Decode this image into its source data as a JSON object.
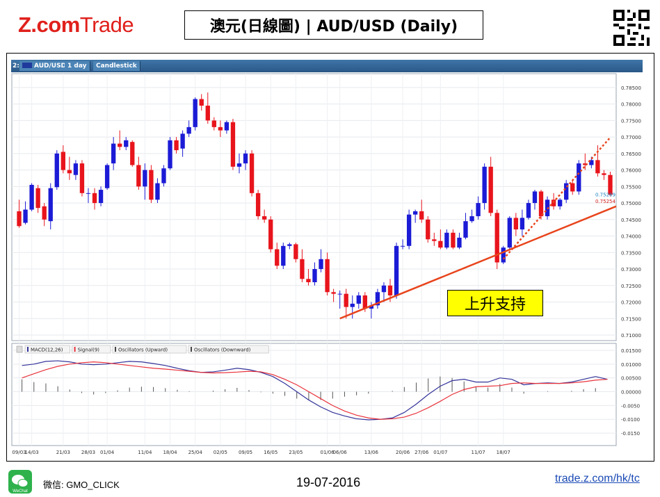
{
  "header": {
    "logo_main": "Z.com",
    "logo_trade": "Trade",
    "title": "澳元(日線圖) | AUD/USD (Daily)"
  },
  "toolbar": {
    "index": "2:",
    "symbol": "AUD/USD",
    "period": "1 day",
    "style": "Candlestick"
  },
  "annotation": "上升支持",
  "legend": {
    "macd": "MACD(12,26)",
    "signal": "Signal(9)",
    "osc_up": "Oscillators (Upward)",
    "osc_down": "Oscillators (Downward)"
  },
  "price_labels": {
    "last_blue": "0.75269",
    "last_red": "0.75254"
  },
  "footer": {
    "wechat_label": "WeChat",
    "wechat_id": "微信: GMO_CLICK",
    "date": "19-07-2016",
    "link": "trade.z.com/hk/tc"
  },
  "colors": {
    "up": "#1b1bd6",
    "down": "#e8141c",
    "macd": "#33339a",
    "signal": "#e8323a",
    "support": "#e8441c"
  },
  "chart_data": [
    {
      "type": "candlestick",
      "ylim": [
        0.71,
        0.7875
      ],
      "yticks": [
        "0.78500",
        "0.78000",
        "0.77500",
        "0.77000",
        "0.76500",
        "0.76000",
        "0.75500",
        "0.75000",
        "0.74500",
        "0.74000",
        "0.73500",
        "0.73000",
        "0.72500",
        "0.72000",
        "0.71500",
        "0.71000"
      ],
      "xticks": [
        "09/03",
        "14/03",
        "21/03",
        "28/03",
        "01/04",
        "11/04",
        "18/04",
        "25/04",
        "02/05",
        "09/05",
        "16/05",
        "23/05",
        "01/06",
        "06/06",
        "13/06",
        "20/06",
        "27/06",
        "01/07",
        "11/07",
        "18/07"
      ],
      "candles": [
        [
          0.7475,
          0.751,
          0.7425,
          0.743
        ],
        [
          0.744,
          0.7505,
          0.7435,
          0.748
        ],
        [
          0.748,
          0.756,
          0.7475,
          0.7555
        ],
        [
          0.7545,
          0.7555,
          0.747,
          0.7485
        ],
        [
          0.749,
          0.75,
          0.743,
          0.745
        ],
        [
          0.7445,
          0.756,
          0.742,
          0.7545
        ],
        [
          0.7548,
          0.766,
          0.754,
          0.765
        ],
        [
          0.7655,
          0.7675,
          0.759,
          0.76
        ],
        [
          0.76,
          0.764,
          0.757,
          0.759
        ],
        [
          0.7585,
          0.763,
          0.757,
          0.762
        ],
        [
          0.762,
          0.763,
          0.752,
          0.753
        ],
        [
          0.753,
          0.7545,
          0.75,
          0.753
        ],
        [
          0.753,
          0.7545,
          0.748,
          0.75
        ],
        [
          0.75,
          0.755,
          0.749,
          0.754
        ],
        [
          0.7545,
          0.762,
          0.754,
          0.7615
        ],
        [
          0.762,
          0.77,
          0.76,
          0.768
        ],
        [
          0.768,
          0.772,
          0.766,
          0.767
        ],
        [
          0.767,
          0.77,
          0.766,
          0.769
        ],
        [
          0.7685,
          0.769,
          0.761,
          0.7615
        ],
        [
          0.7615,
          0.764,
          0.754,
          0.755
        ],
        [
          0.755,
          0.762,
          0.751,
          0.76
        ],
        [
          0.76,
          0.7615,
          0.75,
          0.751
        ],
        [
          0.751,
          0.7575,
          0.75,
          0.756
        ],
        [
          0.756,
          0.7615,
          0.755,
          0.7605
        ],
        [
          0.7605,
          0.77,
          0.76,
          0.769
        ],
        [
          0.769,
          0.77,
          0.765,
          0.766
        ],
        [
          0.7665,
          0.772,
          0.764,
          0.771
        ],
        [
          0.771,
          0.775,
          0.77,
          0.773
        ],
        [
          0.773,
          0.782,
          0.772,
          0.7815
        ],
        [
          0.7815,
          0.783,
          0.778,
          0.7795
        ],
        [
          0.7795,
          0.7835,
          0.774,
          0.775
        ],
        [
          0.775,
          0.776,
          0.772,
          0.773
        ],
        [
          0.773,
          0.775,
          0.77,
          0.772
        ],
        [
          0.772,
          0.775,
          0.771,
          0.7745
        ],
        [
          0.7745,
          0.7755,
          0.76,
          0.761
        ],
        [
          0.761,
          0.765,
          0.759,
          0.762
        ],
        [
          0.762,
          0.766,
          0.76,
          0.765
        ],
        [
          0.765,
          0.766,
          0.752,
          0.753
        ],
        [
          0.753,
          0.754,
          0.745,
          0.746
        ],
        [
          0.746,
          0.748,
          0.744,
          0.745
        ],
        [
          0.745,
          0.746,
          0.735,
          0.736
        ],
        [
          0.736,
          0.738,
          0.73,
          0.731
        ],
        [
          0.731,
          0.738,
          0.73,
          0.737
        ],
        [
          0.737,
          0.738,
          0.736,
          0.7375
        ],
        [
          0.7375,
          0.738,
          0.732,
          0.733
        ],
        [
          0.733,
          0.736,
          0.726,
          0.727
        ],
        [
          0.727,
          0.73,
          0.725,
          0.726
        ],
        [
          0.726,
          0.732,
          0.725,
          0.73
        ],
        [
          0.73,
          0.736,
          0.729,
          0.733
        ],
        [
          0.733,
          0.735,
          0.722,
          0.723
        ],
        [
          0.723,
          0.724,
          0.72,
          0.7225
        ],
        [
          0.7225,
          0.7235,
          0.718,
          0.7225
        ],
        [
          0.7225,
          0.724,
          0.715,
          0.7185
        ],
        [
          0.7185,
          0.722,
          0.715,
          0.7195
        ],
        [
          0.7195,
          0.723,
          0.718,
          0.722
        ],
        [
          0.722,
          0.723,
          0.717,
          0.718
        ],
        [
          0.718,
          0.72,
          0.715,
          0.719
        ],
        [
          0.719,
          0.724,
          0.718,
          0.723
        ],
        [
          0.723,
          0.726,
          0.72,
          0.725
        ],
        [
          0.725,
          0.727,
          0.72,
          0.722
        ],
        [
          0.722,
          0.738,
          0.721,
          0.737
        ],
        [
          0.737,
          0.739,
          0.736,
          0.737
        ],
        [
          0.737,
          0.748,
          0.736,
          0.7465
        ],
        [
          0.7465,
          0.748,
          0.744,
          0.7475
        ],
        [
          0.7475,
          0.751,
          0.744,
          0.745
        ],
        [
          0.745,
          0.746,
          0.738,
          0.739
        ],
        [
          0.739,
          0.741,
          0.737,
          0.7385
        ],
        [
          0.7385,
          0.742,
          0.736,
          0.7365
        ],
        [
          0.7365,
          0.742,
          0.736,
          0.741
        ],
        [
          0.741,
          0.742,
          0.736,
          0.7365
        ],
        [
          0.7365,
          0.741,
          0.736,
          0.7395
        ],
        [
          0.7395,
          0.747,
          0.739,
          0.7445
        ],
        [
          0.7445,
          0.748,
          0.744,
          0.746
        ],
        [
          0.746,
          0.752,
          0.745,
          0.75
        ],
        [
          0.75,
          0.762,
          0.748,
          0.761
        ],
        [
          0.761,
          0.764,
          0.746,
          0.747
        ],
        [
          0.747,
          0.748,
          0.73,
          0.732
        ],
        [
          0.732,
          0.737,
          0.7315,
          0.7365
        ],
        [
          0.7365,
          0.746,
          0.736,
          0.7455
        ],
        [
          0.7455,
          0.747,
          0.74,
          0.742
        ],
        [
          0.742,
          0.748,
          0.74,
          0.7455
        ],
        [
          0.7455,
          0.751,
          0.745,
          0.75
        ],
        [
          0.75,
          0.754,
          0.748,
          0.7535
        ],
        [
          0.7535,
          0.754,
          0.745,
          0.746
        ],
        [
          0.746,
          0.752,
          0.745,
          0.751
        ],
        [
          0.751,
          0.753,
          0.748,
          0.749
        ],
        [
          0.749,
          0.7515,
          0.748,
          0.751
        ],
        [
          0.751,
          0.757,
          0.75,
          0.756
        ],
        [
          0.756,
          0.757,
          0.7525,
          0.7535
        ],
        [
          0.7535,
          0.763,
          0.7525,
          0.762
        ],
        [
          0.762,
          0.765,
          0.76,
          0.7615
        ],
        [
          0.7615,
          0.764,
          0.7605,
          0.763
        ],
        [
          0.763,
          0.7675,
          0.758,
          0.759
        ],
        [
          0.759,
          0.76,
          0.757,
          0.7585
        ],
        [
          0.7585,
          0.7595,
          0.752,
          0.7525
        ]
      ]
    },
    {
      "type": "line",
      "ylim": [
        -0.018,
        0.016
      ],
      "yticks": [
        "0.01500",
        "0.01000",
        "0.00500",
        "0.00000",
        "-0.0050",
        "-0.0100",
        "-0.0150"
      ],
      "series": [
        {
          "name": "MACD(12,26)",
          "values": [
            0.0095,
            0.01,
            0.011,
            0.0112,
            0.0108,
            0.01,
            0.0098,
            0.01,
            0.0105,
            0.011,
            0.0108,
            0.0102,
            0.0095,
            0.0085,
            0.0076,
            0.007,
            0.0072,
            0.0078,
            0.0085,
            0.008,
            0.007,
            0.0055,
            0.003,
            0.0,
            -0.003,
            -0.0055,
            -0.0075,
            -0.0088,
            -0.0098,
            -0.0102,
            -0.01,
            -0.0095,
            -0.0075,
            -0.0045,
            -0.001,
            0.002,
            0.004,
            0.0045,
            0.0035,
            0.0035,
            0.005,
            0.0045,
            0.0025,
            0.003,
            0.0032,
            0.003,
            0.0035,
            0.0045,
            0.0055,
            0.0045
          ]
        },
        {
          "name": "Signal(9)",
          "values": [
            0.005,
            0.0065,
            0.008,
            0.0092,
            0.01,
            0.0105,
            0.0108,
            0.0105,
            0.01,
            0.0095,
            0.009,
            0.0085,
            0.0082,
            0.0078,
            0.0074,
            0.007,
            0.0068,
            0.0069,
            0.0071,
            0.0074,
            0.0072,
            0.0062,
            0.0045,
            0.0025,
            0.0,
            -0.0025,
            -0.005,
            -0.007,
            -0.0085,
            -0.0095,
            -0.01,
            -0.0098,
            -0.0092,
            -0.0078,
            -0.0058,
            -0.0035,
            -0.001,
            0.0008,
            0.0018,
            0.002,
            0.0022,
            0.003,
            0.0032,
            0.003,
            0.003,
            0.003,
            0.0032,
            0.0036,
            0.0042,
            0.0045
          ]
        }
      ],
      "histogram": [
        0.0045,
        0.0035,
        0.003,
        0.002,
        0.0008,
        -0.0005,
        -0.001,
        -0.0005,
        0.0005,
        0.0015,
        0.0018,
        0.0017,
        0.0013,
        0.0007,
        0.0002,
        0.0,
        0.0004,
        0.0009,
        0.0014,
        0.0006,
        -0.0002,
        -0.0007,
        -0.0015,
        -0.0025,
        -0.003,
        -0.003,
        -0.0025,
        -0.0018,
        -0.0013,
        -0.0007,
        0.0,
        0.0003,
        0.0017,
        0.0033,
        0.0048,
        0.0055,
        0.005,
        0.0037,
        0.0017,
        0.0015,
        0.0028,
        0.0015,
        -0.0007,
        0.0,
        0.0002,
        0.0,
        0.0003,
        0.0009,
        0.0013,
        0.0
      ]
    }
  ]
}
